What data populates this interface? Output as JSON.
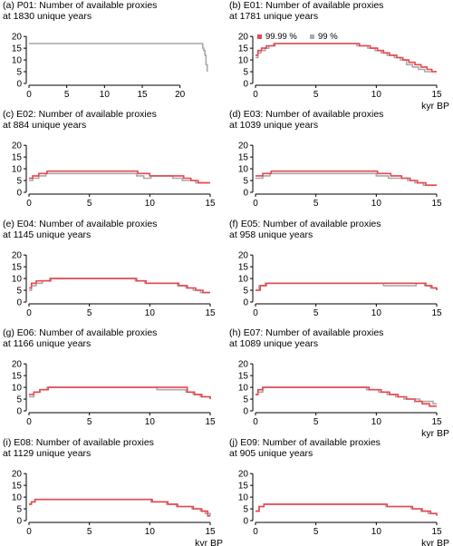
{
  "colors": {
    "s9999": "#e8474f",
    "s99": "#a9a9ab",
    "axis": "#000000"
  },
  "chart_data": [
    {
      "type": "line",
      "panel": "(a)",
      "title": "(a) P01: Number of available proxies",
      "subtitle": "at 1830 unique years",
      "xlabel": "",
      "ylabel": "",
      "xlim": [
        0,
        24
      ],
      "ylim": [
        0,
        22
      ],
      "xticks": [
        "0",
        "5",
        "10",
        "15",
        "20"
      ],
      "yticks": [
        "0",
        "5",
        "10",
        "15",
        "20"
      ],
      "legend": null,
      "series": [
        {
          "color": "#a9a9ab",
          "x": [
            0,
            22.9,
            23.0,
            23.15,
            23.3,
            23.45,
            23.6
          ],
          "y": [
            17,
            17,
            15,
            14,
            12,
            8,
            5
          ]
        }
      ]
    },
    {
      "type": "line",
      "panel": "(b)",
      "title": "(b) E01: Number of available proxies",
      "subtitle": "at 1781 unique years",
      "xlabel": "kyr BP",
      "ylabel": "",
      "xlim": [
        0,
        15
      ],
      "ylim": [
        0,
        22
      ],
      "xticks": [
        "0",
        "5",
        "10",
        "15"
      ],
      "yticks": [
        "0",
        "5",
        "10",
        "15",
        "20"
      ],
      "legend": {
        "position": "top-left",
        "entries": [
          "99.99 %",
          "99 %"
        ]
      },
      "series": [
        {
          "name": "99 %",
          "color": "#a9a9ab",
          "x": [
            0,
            0.2,
            0.45,
            0.8,
            1.1,
            1.5,
            7.4,
            8.4,
            9.3,
            9.9,
            10.4,
            10.9,
            11.5,
            12.0,
            12.5,
            13.0,
            13.5,
            14.0,
            14.5,
            15
          ],
          "y": [
            11,
            13,
            14,
            15,
            16,
            17,
            17,
            16,
            15,
            14,
            13,
            12,
            11,
            10,
            8,
            7,
            6,
            5,
            5,
            5
          ]
        },
        {
          "name": "99.99 %",
          "color": "#e8474f",
          "x": [
            0,
            0.2,
            0.5,
            0.9,
            1.2,
            1.6,
            7.6,
            8.6,
            9.5,
            10.1,
            10.6,
            11.1,
            11.7,
            12.2,
            12.7,
            13.2,
            13.7,
            14.2,
            14.6,
            15
          ],
          "y": [
            12,
            14,
            15,
            16,
            16,
            17,
            17,
            16,
            15,
            14,
            13,
            12,
            11,
            10,
            9,
            8,
            7,
            6,
            5,
            5
          ]
        }
      ]
    },
    {
      "type": "line",
      "panel": "(c)",
      "title": "(c) E02: Number of available proxies",
      "subtitle": "at 884 unique years",
      "xlabel": "",
      "ylabel": "",
      "xlim": [
        0,
        15
      ],
      "ylim": [
        0,
        22
      ],
      "xticks": [
        "0",
        "5",
        "10",
        "15"
      ],
      "yticks": [
        "0",
        "5",
        "10",
        "15",
        "20"
      ],
      "legend": null,
      "series": [
        {
          "name": "99 %",
          "color": "#a9a9ab",
          "x": [
            0,
            0.3,
            0.8,
            1.4,
            7.3,
            8.9,
            9.5,
            10.1,
            11.9,
            12.7,
            13.3,
            13.8,
            14.4,
            15
          ],
          "y": [
            5,
            6,
            7,
            8,
            8,
            7,
            6,
            7,
            6,
            5,
            5,
            4,
            4,
            4
          ]
        },
        {
          "name": "99.99 %",
          "color": "#e8474f",
          "x": [
            0,
            0.3,
            0.8,
            1.5,
            7.4,
            9.0,
            10.0,
            12.0,
            12.8,
            13.4,
            14.0,
            15
          ],
          "y": [
            6,
            7,
            8,
            9,
            9,
            8,
            7,
            7,
            6,
            5,
            4,
            4
          ]
        }
      ]
    },
    {
      "type": "line",
      "panel": "(d)",
      "title": "(d) E03: Number of available proxies",
      "subtitle": "at 1039 unique years",
      "xlabel": "",
      "ylabel": "",
      "xlim": [
        0,
        15
      ],
      "ylim": [
        0,
        22
      ],
      "xticks": [
        "0",
        "5",
        "10",
        "15"
      ],
      "yticks": [
        "0",
        "5",
        "10",
        "15",
        "20"
      ],
      "legend": null,
      "series": [
        {
          "name": "99 %",
          "color": "#a9a9ab",
          "x": [
            0,
            0.6,
            1.2,
            7.6,
            10.0,
            11.0,
            12.0,
            12.6,
            13.2,
            13.9,
            14.4,
            15
          ],
          "y": [
            6,
            7,
            8,
            8,
            7,
            6,
            6,
            5,
            4,
            3,
            3,
            3
          ]
        },
        {
          "name": "99.99 %",
          "color": "#e8474f",
          "x": [
            0,
            0.6,
            1.3,
            7.8,
            10.1,
            11.2,
            12.1,
            12.8,
            13.4,
            14.1,
            15
          ],
          "y": [
            7,
            8,
            9,
            9,
            8,
            7,
            6,
            5,
            4,
            3,
            3
          ]
        }
      ]
    },
    {
      "type": "line",
      "panel": "(e)",
      "title": "(e) E04: Number of available proxies",
      "subtitle": "at 1145 unique years",
      "xlabel": "",
      "ylabel": "",
      "xlim": [
        0,
        15
      ],
      "ylim": [
        0,
        22
      ],
      "xticks": [
        "0",
        "5",
        "10",
        "15"
      ],
      "yticks": [
        "0",
        "5",
        "10",
        "15",
        "20"
      ],
      "legend": null,
      "series": [
        {
          "name": "99 %",
          "color": "#a9a9ab",
          "x": [
            0,
            0.2,
            0.6,
            1.1,
            1.7,
            7.3,
            8.8,
            9.6,
            11.1,
            12.3,
            13.0,
            13.6,
            14.2,
            15
          ],
          "y": [
            5,
            7,
            8,
            9,
            10,
            10,
            9,
            8,
            8,
            7,
            6,
            5,
            4,
            4
          ]
        },
        {
          "name": "99.99 %",
          "color": "#e8474f",
          "x": [
            0,
            0.2,
            0.6,
            1.1,
            1.8,
            7.4,
            8.9,
            9.7,
            11.2,
            12.4,
            13.1,
            13.8,
            14.4,
            15
          ],
          "y": [
            6,
            8,
            9,
            9,
            10,
            10,
            9,
            8,
            8,
            7,
            6,
            5,
            4,
            4
          ]
        }
      ]
    },
    {
      "type": "line",
      "panel": "(f)",
      "title": "(f) E05: Number of available proxies",
      "subtitle": "at 958 unique years",
      "xlabel": "",
      "ylabel": "",
      "xlim": [
        0,
        15
      ],
      "ylim": [
        0,
        22
      ],
      "xticks": [
        "0",
        "5",
        "10",
        "15"
      ],
      "yticks": [
        "0",
        "5",
        "10",
        "15",
        "20"
      ],
      "legend": null,
      "series": [
        {
          "name": "99 %",
          "color": "#a9a9ab",
          "x": [
            0,
            0.3,
            0.8,
            9.9,
            10.6,
            13.3,
            14.0,
            14.5,
            15
          ],
          "y": [
            5,
            7,
            8,
            8,
            7,
            8,
            7,
            6,
            5
          ]
        },
        {
          "name": "99.99 %",
          "color": "#e8474f",
          "x": [
            0,
            0.4,
            0.9,
            13.5,
            14.1,
            14.6,
            15
          ],
          "y": [
            5,
            7,
            8,
            8,
            7,
            6,
            5
          ]
        }
      ]
    },
    {
      "type": "line",
      "panel": "(g)",
      "title": "(g) E06: Number of available proxies",
      "subtitle": "at 1166 unique years",
      "xlabel": "",
      "ylabel": "",
      "xlim": [
        0,
        15
      ],
      "ylim": [
        0,
        22
      ],
      "xticks": [
        "0",
        "5",
        "10",
        "15"
      ],
      "yticks": [
        "0",
        "5",
        "10",
        "15",
        "20"
      ],
      "legend": null,
      "series": [
        {
          "name": "99 %",
          "color": "#a9a9ab",
          "x": [
            0,
            0.4,
            0.9,
            1.5,
            9.9,
            10.6,
            12.2,
            13.0,
            13.6,
            14.2,
            15
          ],
          "y": [
            6,
            8,
            9,
            10,
            10,
            9,
            9,
            8,
            7,
            6,
            5
          ]
        },
        {
          "name": "99.99 %",
          "color": "#e8474f",
          "x": [
            0,
            0.4,
            0.9,
            1.6,
            12.3,
            13.1,
            13.7,
            14.3,
            15
          ],
          "y": [
            7,
            8,
            9,
            10,
            10,
            8,
            7,
            6,
            5
          ]
        }
      ]
    },
    {
      "type": "line",
      "panel": "(h)",
      "title": "(h) E07: Number of available proxies",
      "subtitle": "at 1089 unique years",
      "xlabel": "kyr BP",
      "ylabel": "",
      "xlim": [
        0,
        15
      ],
      "ylim": [
        0,
        22
      ],
      "xticks": [
        "0",
        "5",
        "10",
        "15"
      ],
      "yticks": [
        "0",
        "5",
        "10",
        "15",
        "20"
      ],
      "legend": null,
      "series": [
        {
          "name": "99 %",
          "color": "#a9a9ab",
          "x": [
            0,
            0.2,
            0.6,
            7.6,
            9.2,
            10.2,
            10.9,
            11.6,
            12.3,
            12.9,
            13.6,
            14.2,
            14.7,
            15
          ],
          "y": [
            7,
            8,
            10,
            10,
            9,
            8,
            7,
            6,
            5,
            5,
            4,
            4,
            3,
            3
          ]
        },
        {
          "name": "99.99 %",
          "color": "#e8474f",
          "x": [
            0,
            0.2,
            0.6,
            7.8,
            9.4,
            10.4,
            11.1,
            11.8,
            12.5,
            13.2,
            13.8,
            14.4,
            14.8,
            15
          ],
          "y": [
            7,
            9,
            10,
            10,
            9,
            8,
            7,
            6,
            5,
            4,
            3,
            2,
            2,
            2
          ]
        }
      ]
    },
    {
      "type": "line",
      "panel": "(i)",
      "title": "(i) E08: Number of available proxies",
      "subtitle": "at 1129 unique years",
      "xlabel": "kyr BP",
      "ylabel": "",
      "xlim": [
        0,
        15
      ],
      "ylim": [
        0,
        22
      ],
      "xticks": [
        "0",
        "5",
        "10",
        "15"
      ],
      "yticks": [
        "0",
        "5",
        "10",
        "15",
        "20"
      ],
      "legend": null,
      "series": [
        {
          "name": "99 %",
          "color": "#a9a9ab",
          "x": [
            0,
            0.2,
            0.5,
            8.1,
            10.1,
            11.4,
            12.2,
            13.5,
            14.2,
            14.6,
            15
          ],
          "y": [
            7,
            8,
            9,
            9,
            8,
            7,
            6,
            5,
            4,
            3,
            2
          ]
        },
        {
          "name": "99.99 %",
          "color": "#e8474f",
          "x": [
            0,
            0.2,
            0.5,
            8.2,
            10.2,
            11.5,
            12.3,
            13.6,
            14.3,
            14.8,
            15
          ],
          "y": [
            7,
            8,
            9,
            9,
            8,
            7,
            6,
            5,
            4,
            2,
            2
          ]
        }
      ]
    },
    {
      "type": "line",
      "panel": "(j)",
      "title": "(j) E09: Number of available proxies",
      "subtitle": "at 905 unique years",
      "xlabel": "kyr BP",
      "ylabel": "",
      "xlim": [
        0,
        15
      ],
      "ylim": [
        0,
        22
      ],
      "xticks": [
        "0",
        "5",
        "10",
        "15"
      ],
      "yticks": [
        "0",
        "5",
        "10",
        "15",
        "20"
      ],
      "legend": null,
      "series": [
        {
          "name": "99 %",
          "color": "#a9a9ab",
          "x": [
            0,
            0.3,
            0.7,
            10.1,
            10.8,
            12.9,
            13.7,
            14.3,
            15
          ],
          "y": [
            4,
            6,
            7,
            7,
            6,
            5,
            4,
            3,
            3
          ]
        },
        {
          "name": "99.99 %",
          "color": "#e8474f",
          "x": [
            0,
            0.3,
            0.7,
            10.2,
            10.9,
            13.0,
            13.8,
            14.5,
            15
          ],
          "y": [
            4,
            6,
            7,
            7,
            6,
            5,
            4,
            3,
            2
          ]
        }
      ]
    }
  ]
}
